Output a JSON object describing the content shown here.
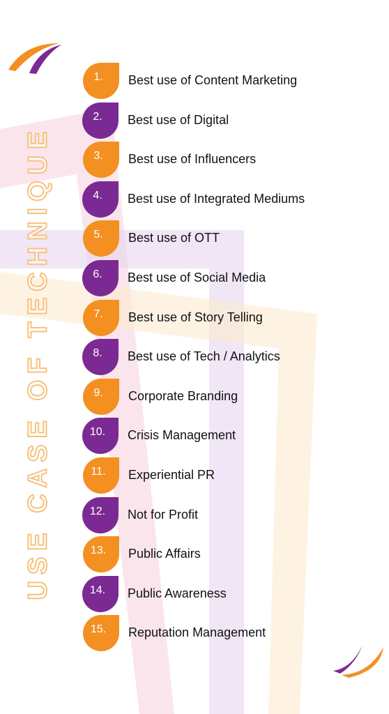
{
  "title": "USE CASE OF TECHNIQUE",
  "items": [
    {
      "number": "1.",
      "label": "Best use of Content Marketing"
    },
    {
      "number": "2.",
      "label": "Best use of Digital"
    },
    {
      "number": "3.",
      "label": "Best use of Influencers"
    },
    {
      "number": "4.",
      "label": "Best use of Integrated Mediums"
    },
    {
      "number": "5.",
      "label": "Best use of OTT"
    },
    {
      "number": "6.",
      "label": "Best use of Social Media"
    },
    {
      "number": "7.",
      "label": "Best use of Story Telling"
    },
    {
      "number": "8.",
      "label": "Best use of Tech / Analytics"
    },
    {
      "number": "9.",
      "label": "Corporate Branding"
    },
    {
      "number": "10.",
      "label": "Crisis Management"
    },
    {
      "number": "11.",
      "label": "Experiential PR"
    },
    {
      "number": "12.",
      "label": "Not for Profit"
    },
    {
      "number": "13.",
      "label": "Public Affairs"
    },
    {
      "number": "14.",
      "label": "Public Awareness"
    },
    {
      "number": "15.",
      "label": "Reputation Management"
    }
  ]
}
